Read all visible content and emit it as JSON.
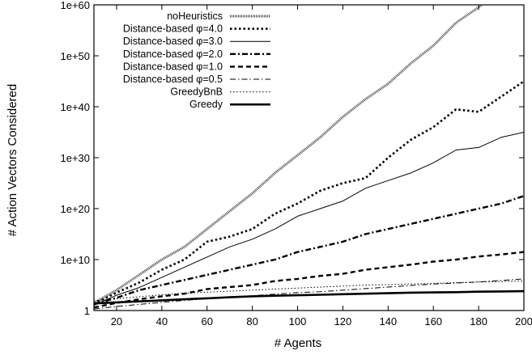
{
  "chart_data": {
    "type": "line",
    "xlabel": "# Agents",
    "ylabel": "# Action Vectors Considered",
    "x_ticks": [
      20,
      40,
      60,
      80,
      100,
      120,
      140,
      160,
      180,
      200
    ],
    "y_ticks": [
      {
        "exp": 0,
        "label": "1"
      },
      {
        "exp": 10,
        "label": "1e+10"
      },
      {
        "exp": 20,
        "label": "1e+20"
      },
      {
        "exp": 30,
        "label": "1e+30"
      },
      {
        "exp": 40,
        "label": "1e+40"
      },
      {
        "exp": 50,
        "label": "1e+50"
      },
      {
        "exp": 60,
        "label": "1e+60"
      }
    ],
    "xlim": [
      10,
      200
    ],
    "ylim_log10": [
      0,
      60
    ],
    "y_scale": "log",
    "grid": false,
    "legend_position": "top-left",
    "x": [
      10,
      20,
      30,
      40,
      50,
      60,
      70,
      80,
      90,
      100,
      110,
      120,
      130,
      140,
      150,
      160,
      170,
      180,
      190,
      200
    ],
    "series": [
      {
        "name": "noHeuristics",
        "style": "dense-dotted",
        "log10_values": [
          1.5,
          4,
          7,
          10,
          12.5,
          16,
          19.5,
          23,
          27,
          30.5,
          34,
          38,
          41.5,
          44.5,
          48.5,
          52,
          56.5,
          59.5,
          63,
          67
        ]
      },
      {
        "name": "Distance-based φ=4.0",
        "style": "bold-dotted",
        "log10_values": [
          1.3,
          3.5,
          5.5,
          8,
          10,
          13.5,
          14.5,
          16,
          19,
          21,
          23.5,
          25,
          26,
          30,
          33.5,
          36,
          39.5,
          39,
          42,
          45
        ]
      },
      {
        "name": "Distance-based φ=3.0",
        "style": "solid-thin",
        "log10_values": [
          1,
          3,
          4.5,
          6.5,
          8.5,
          10.5,
          12.5,
          14,
          16,
          18.5,
          20,
          21.5,
          24,
          25.5,
          27,
          29,
          31.5,
          32,
          34,
          35
        ]
      },
      {
        "name": "Distance-based φ=2.0",
        "style": "dash-dot-bold",
        "log10_values": [
          1.2,
          2.5,
          4,
          5,
          6,
          7,
          8,
          9,
          10,
          11.5,
          12.5,
          13.5,
          15,
          16,
          17,
          18,
          19,
          20,
          21,
          22.5
        ]
      },
      {
        "name": "Distance-based φ=1.0",
        "style": "dashed-bold",
        "log10_values": [
          0.6,
          1.5,
          2.2,
          2.8,
          3.3,
          4.2,
          4.6,
          5,
          5.8,
          6.2,
          6.8,
          7.2,
          8,
          8.5,
          9,
          9.6,
          10,
          10.6,
          11,
          11.5
        ]
      },
      {
        "name": "Distance-based φ=0.5",
        "style": "dash-dot-thin",
        "log10_values": [
          0.3,
          0.8,
          1.2,
          1.6,
          2,
          2.3,
          2.6,
          2.9,
          3.2,
          3.5,
          3.7,
          4,
          4.3,
          4.6,
          4.9,
          5.2,
          5.4,
          5.6,
          5.9,
          6.2
        ]
      },
      {
        "name": "GreedyBnB",
        "style": "dotted-thin",
        "log10_values": [
          1.9,
          2.3,
          2.7,
          3.1,
          3.4,
          3.6,
          3.8,
          4,
          4.2,
          4.4,
          4.6,
          4.8,
          5,
          5.1,
          5.2,
          5.3,
          5.5,
          5.6,
          5.7,
          5.8
        ]
      },
      {
        "name": "Greedy",
        "style": "solid-bold",
        "log10_values": [
          1.4,
          1.6,
          1.8,
          2,
          2.2,
          2.4,
          2.6,
          2.8,
          2.9,
          3,
          3.1,
          3.2,
          3.3,
          3.4,
          3.5,
          3.55,
          3.6,
          3.7,
          3.75,
          3.8
        ]
      }
    ]
  }
}
